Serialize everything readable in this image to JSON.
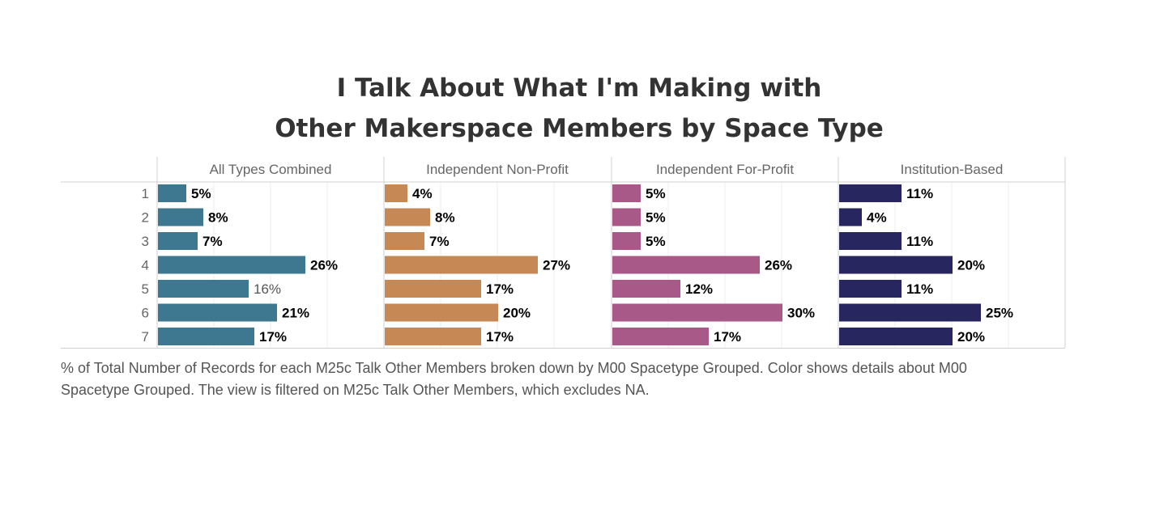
{
  "title": {
    "line1": "I Talk About What I'm Making with",
    "line2": "Other Makerspace Members by Space Type"
  },
  "caption": {
    "line1": "% of Total Number of Records for each M25c Talk Other Members broken down by M00 Spacetype Grouped.  Color shows details about M00",
    "line2": "Spacetype Grouped. The view is filtered on M25c Talk Other Members, which excludes NA."
  },
  "chart_data": {
    "type": "bar",
    "orientation": "horizontal",
    "categories": [
      "1",
      "2",
      "3",
      "4",
      "5",
      "6",
      "7"
    ],
    "xlim": [
      0,
      40
    ],
    "grid": true,
    "series": [
      {
        "name": "All Types Combined",
        "color": "#3d7890",
        "values": [
          5,
          8,
          7,
          26,
          16,
          21,
          17
        ],
        "labels": [
          "5%",
          "8%",
          "7%",
          "26%",
          "16%",
          "21%",
          "17%"
        ],
        "bold_labels": [
          true,
          true,
          true,
          true,
          false,
          true,
          true
        ]
      },
      {
        "name": "Independent Non-Profit",
        "color": "#c68955",
        "values": [
          4,
          8,
          7,
          27,
          17,
          20,
          17
        ],
        "labels": [
          "4%",
          "8%",
          "7%",
          "27%",
          "17%",
          "20%",
          "17%"
        ],
        "bold_labels": [
          true,
          true,
          true,
          true,
          true,
          true,
          true
        ]
      },
      {
        "name": "Independent For-Profit",
        "color": "#a85987",
        "values": [
          5,
          5,
          5,
          26,
          12,
          30,
          17
        ],
        "labels": [
          "5%",
          "5%",
          "5%",
          "26%",
          "12%",
          "30%",
          "17%"
        ],
        "bold_labels": [
          true,
          true,
          true,
          true,
          true,
          true,
          true
        ]
      },
      {
        "name": "Institution-Based",
        "color": "#28265e",
        "values": [
          11,
          4,
          11,
          20,
          11,
          25,
          20
        ],
        "labels": [
          "11%",
          "4%",
          "11%",
          "20%",
          "11%",
          "25%",
          "20%"
        ],
        "bold_labels": [
          true,
          true,
          true,
          true,
          true,
          true,
          true
        ]
      }
    ]
  }
}
